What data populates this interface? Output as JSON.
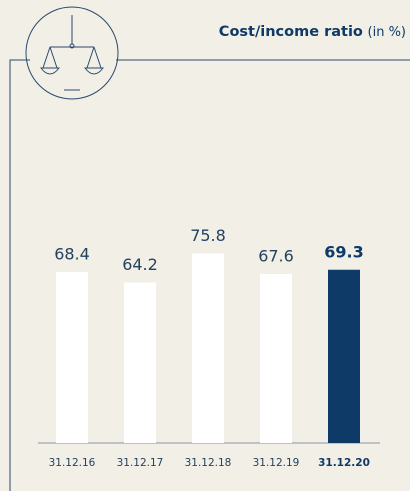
{
  "chart_data": {
    "type": "bar",
    "title": "Cost/income ratio",
    "subtitle": "(in %)",
    "categories": [
      "31.12.16",
      "31.12.17",
      "31.12.18",
      "31.12.19",
      "31.12.20"
    ],
    "values": [
      68.4,
      64.2,
      75.8,
      67.6,
      69.3
    ],
    "color": "#ffffff",
    "highlight": 4,
    "highlight_color": "#0d3a66",
    "ylim": [
      0,
      100
    ]
  }
}
